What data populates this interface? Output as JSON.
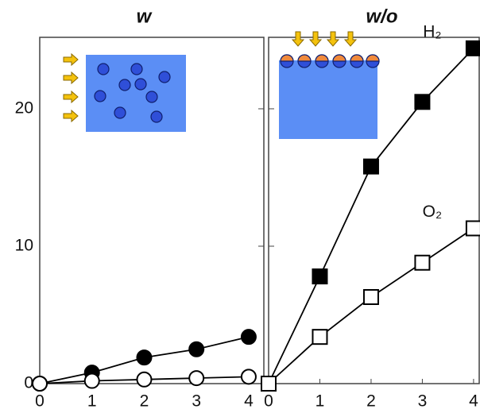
{
  "chart_data": [
    {
      "type": "line",
      "title": "w",
      "xlim": [
        0,
        4.29
      ],
      "xticks": [
        0,
        1,
        2,
        3,
        4
      ],
      "ylim": [
        0,
        25.2
      ],
      "yticks": [
        0,
        10,
        20
      ],
      "x": [
        0,
        1,
        2,
        3,
        4
      ],
      "series": [
        {
          "color": "#000000",
          "marker": "circle",
          "values": [
            0,
            0.8,
            1.9,
            2.5,
            3.4
          ]
        },
        {
          "color": "#ffffff",
          "marker": "circle",
          "values": [
            0,
            0.2,
            0.3,
            0.4,
            0.5
          ]
        }
      ]
    },
    {
      "type": "line",
      "title": "w/o",
      "xlim": [
        0,
        4.11
      ],
      "xticks": [
        0,
        1,
        2,
        3,
        4
      ],
      "ylim": [
        0,
        25.2
      ],
      "yticks": [
        10,
        20
      ],
      "x": [
        0,
        1,
        2,
        3,
        4
      ],
      "series": [
        {
          "name": "H₂",
          "color": "#000000",
          "marker": "square",
          "values": [
            0,
            7.8,
            15.8,
            20.5,
            24.4
          ]
        },
        {
          "name": "O₂",
          "color": "#ffffff",
          "marker": "square",
          "values": [
            0,
            3.4,
            6.3,
            8.8,
            11.3
          ]
        }
      ]
    }
  ]
}
